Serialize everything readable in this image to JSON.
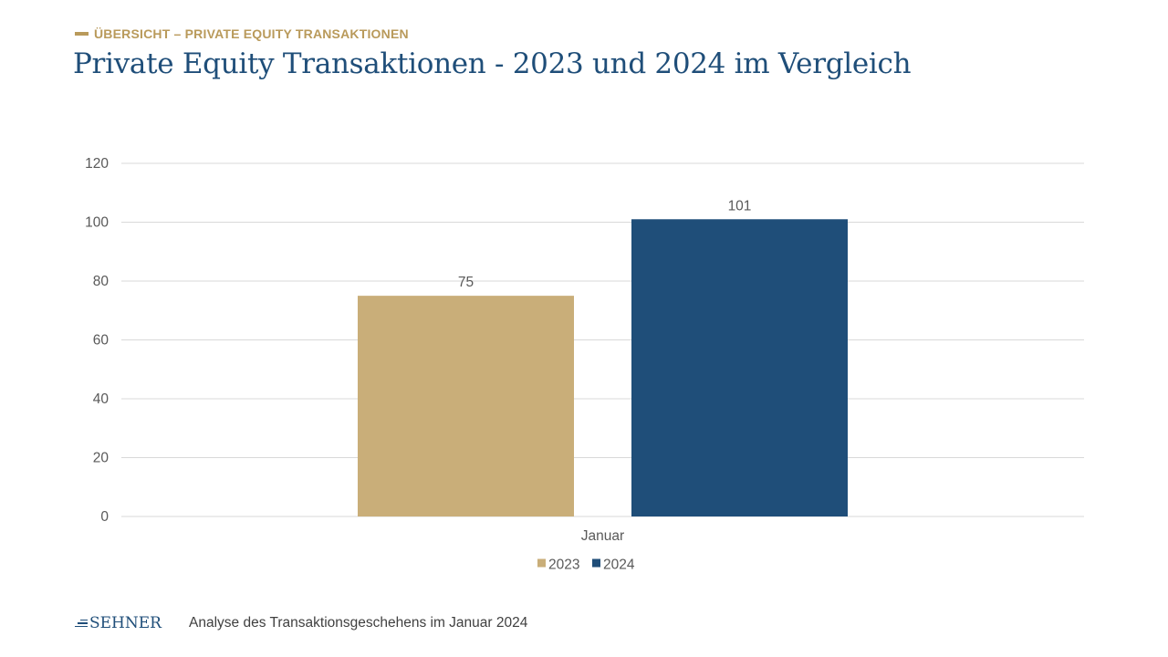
{
  "colors": {
    "gold": "#c9ae79",
    "navy": "#1f4e79",
    "kicker": "#b99a5b",
    "axis_text": "#595959",
    "grid": "#d9d9d9"
  },
  "header": {
    "kicker": "ÜBERSICHT – PRIVATE EQUITY TRANSAKTIONEN",
    "title": "Private Equity Transaktionen - 2023 und 2024 im Vergleich"
  },
  "footer": {
    "logo_text": "SEHNER",
    "text": "Analyse des Transaktionsgeschehens im Januar 2024"
  },
  "chart_data": {
    "type": "bar",
    "categories": [
      "Januar"
    ],
    "series": [
      {
        "name": "2023",
        "values": [
          75
        ],
        "color": "#c9ae79"
      },
      {
        "name": "2024",
        "values": [
          101
        ],
        "color": "#1f4e79"
      }
    ],
    "ylim": [
      0,
      120
    ],
    "yticks": [
      0,
      20,
      40,
      60,
      80,
      100,
      120
    ],
    "grid": true,
    "legend": "bottom",
    "data_labels": true
  }
}
